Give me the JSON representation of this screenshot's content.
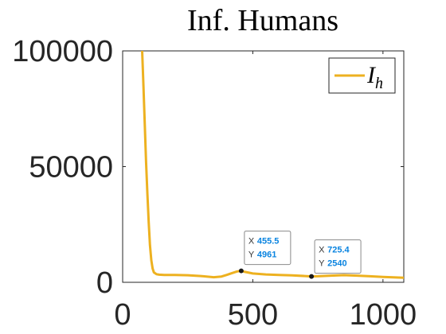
{
  "chart_data": {
    "type": "line",
    "title": "Inf. Humans",
    "xlabel": "",
    "ylabel": "",
    "xlim": [
      0,
      1080
    ],
    "ylim": [
      0,
      100000
    ],
    "x_ticks": [
      0,
      500,
      1000
    ],
    "y_ticks": [
      0,
      50000,
      100000
    ],
    "x_tick_labels": [
      "0",
      "500",
      "1000"
    ],
    "y_tick_labels": [
      "0",
      "50000",
      "100000"
    ],
    "legend": {
      "placement": "top-right"
    },
    "series": [
      {
        "name": "I",
        "name_subscript": "h",
        "color": "#EDB120",
        "x": [
          75,
          80,
          85,
          90,
          95,
          100,
          105,
          110,
          115,
          120,
          130,
          140,
          160,
          200,
          250,
          300,
          350,
          380,
          400,
          420,
          440,
          455.5,
          470,
          500,
          550,
          600,
          650,
          700,
          725.4,
          750,
          800,
          850,
          900,
          950,
          1000,
          1050,
          1080
        ],
        "y": [
          100000,
          85000,
          68000,
          52000,
          38000,
          26000,
          16000,
          9500,
          6000,
          4300,
          3500,
          3300,
          3200,
          3150,
          3050,
          2700,
          2200,
          2500,
          3200,
          4000,
          4700,
          4961,
          4500,
          3800,
          3400,
          3200,
          3000,
          2700,
          2540,
          2600,
          2900,
          3100,
          2900,
          2600,
          2300,
          2100,
          2000
        ]
      }
    ],
    "datatips": [
      {
        "x_key": "X",
        "y_key": "Y",
        "x": 455.5,
        "y": 4961,
        "x_text": "455.5",
        "y_text": "4961"
      },
      {
        "x_key": "X",
        "y_key": "Y",
        "x": 725.4,
        "y": 2540,
        "x_text": "725.4",
        "y_text": "2540"
      }
    ]
  }
}
